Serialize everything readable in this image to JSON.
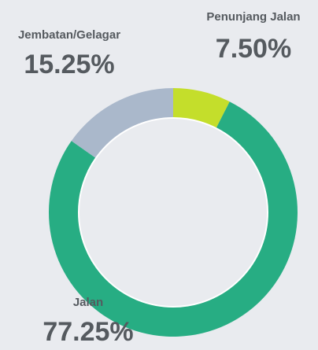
{
  "chart_data": {
    "type": "donut",
    "categories": [
      "Penunjang Jalan",
      "Jalan",
      "Jembatan/Gelagar"
    ],
    "values": [
      7.5,
      77.25,
      15.25
    ],
    "value_labels": [
      "7.50%",
      "77.25%",
      "15.25%"
    ],
    "colors": [
      "#c4de2b",
      "#27ad83",
      "#aab8cb"
    ]
  }
}
